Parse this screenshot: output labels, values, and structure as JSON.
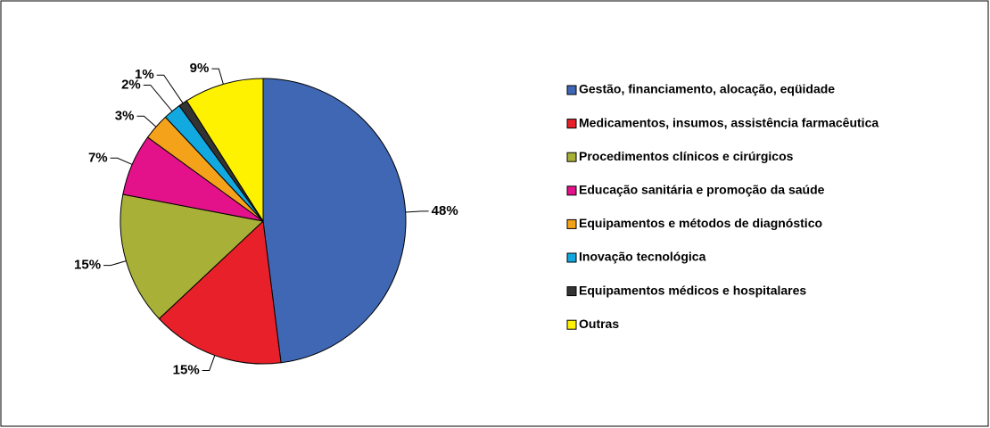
{
  "chart_data": {
    "type": "pie",
    "categories": [
      "Gestão, financiamento, alocação, eqüidade",
      "Medicamentos, insumos, assistência farmacêutica",
      "Procedimentos clínicos e cirúrgicos",
      "Educação sanitária e promoção da saúde",
      "Equipamentos e métodos de diagnóstico",
      "Inovação tecnológica",
      "Equipamentos médicos e hospitalares",
      "Outras"
    ],
    "values": [
      48,
      15,
      15,
      7,
      3,
      2,
      1,
      9
    ],
    "value_labels": [
      "48%",
      "15%",
      "15%",
      "7%",
      "3%",
      "2%",
      "1%",
      "9%"
    ],
    "colors": [
      "#3f67b3",
      "#e8202a",
      "#a8b038",
      "#e3128a",
      "#f5a21b",
      "#12a9e0",
      "#333333",
      "#fff200"
    ],
    "legend": "right"
  }
}
